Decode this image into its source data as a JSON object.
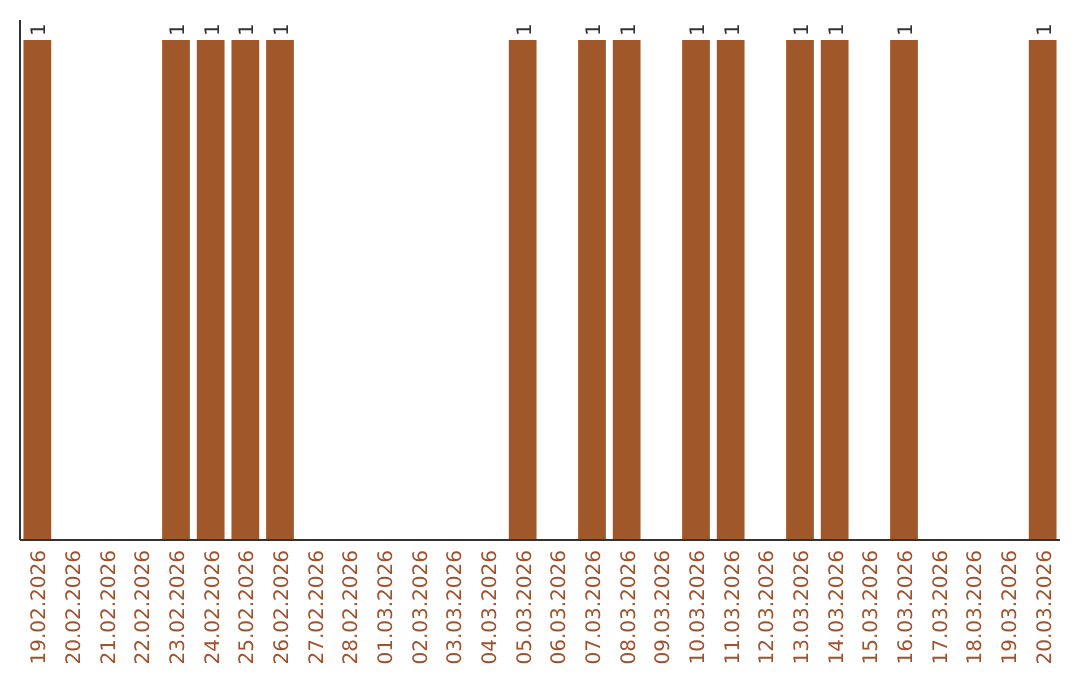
{
  "chart_data": {
    "type": "bar",
    "categories": [
      "19.02.2026",
      "20.02.2026",
      "21.02.2026",
      "22.02.2026",
      "23.02.2026",
      "24.02.2026",
      "25.02.2026",
      "26.02.2026",
      "27.02.2026",
      "28.02.2026",
      "01.03.2026",
      "02.03.2026",
      "03.03.2026",
      "04.03.2026",
      "05.03.2026",
      "06.03.2026",
      "07.03.2026",
      "08.03.2026",
      "09.03.2026",
      "10.03.2026",
      "11.03.2026",
      "12.03.2026",
      "13.03.2026",
      "14.03.2026",
      "15.03.2026",
      "16.03.2026",
      "17.03.2026",
      "18.03.2026",
      "19.03.2026",
      "20.03.2026"
    ],
    "values": [
      1,
      0,
      0,
      0,
      1,
      1,
      1,
      1,
      0,
      0,
      0,
      0,
      0,
      0,
      1,
      0,
      1,
      1,
      0,
      1,
      1,
      0,
      1,
      1,
      0,
      1,
      0,
      0,
      0,
      1
    ],
    "value_labels": [
      "1",
      null,
      null,
      null,
      "1",
      "1",
      "1",
      "1",
      null,
      null,
      null,
      null,
      null,
      null,
      "1",
      null,
      "1",
      "1",
      null,
      "1",
      "1",
      null,
      "1",
      "1",
      null,
      "1",
      null,
      null,
      null,
      "1"
    ],
    "color": "#a0582a"
  }
}
